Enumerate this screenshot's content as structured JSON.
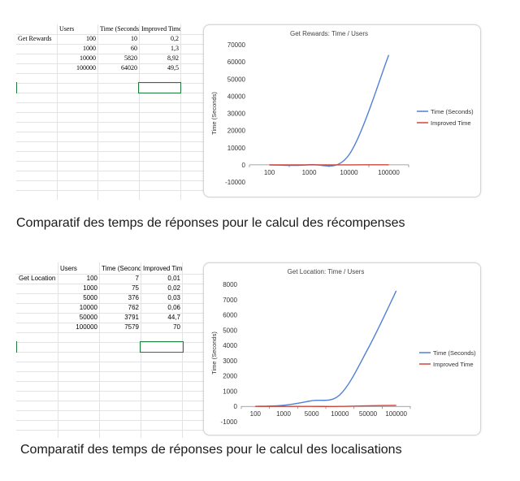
{
  "table1": {
    "headers": [
      "",
      "Users",
      "Time (Seconds)",
      "Improved Time"
    ],
    "row_label": "Get Rewards",
    "rows": [
      [
        "100",
        "10",
        "0,2"
      ],
      [
        "1000",
        "60",
        "1,3"
      ],
      [
        "10000",
        "5820",
        "8,92"
      ],
      [
        "100000",
        "64020",
        "49,5"
      ]
    ]
  },
  "table2": {
    "headers": [
      "",
      "Users",
      "Time (Seconds)",
      "Improved Time"
    ],
    "row_label": "Get Location",
    "rows": [
      [
        "100",
        "7",
        "0,01"
      ],
      [
        "1000",
        "75",
        "0,02"
      ],
      [
        "5000",
        "376",
        "0,03"
      ],
      [
        "10000",
        "762",
        "0,06"
      ],
      [
        "50000",
        "3791",
        "44,7"
      ],
      [
        "100000",
        "7579",
        "70"
      ]
    ]
  },
  "captions": {
    "first": "Comparatif des temps de réponses pour le calcul des récompenses",
    "second": "Comparatif des temps de réponses pour le calcul des localisations"
  },
  "colors": {
    "time_seconds": "#4f7fd8",
    "improved_time": "#d0453a",
    "selection": "#1e7d3a"
  },
  "chart_data": [
    {
      "type": "line",
      "title": "Get Rewards: Time / Users",
      "xlabel": "",
      "ylabel": "Time (Seconds)",
      "categories": [
        "100",
        "1000",
        "10000",
        "100000"
      ],
      "series": [
        {
          "name": "Time (Seconds)",
          "values": [
            10,
            60,
            5820,
            64020
          ]
        },
        {
          "name": "Improved Time",
          "values": [
            0.2,
            1.3,
            8.92,
            49.5
          ]
        }
      ],
      "ylim": [
        -10000,
        70000
      ],
      "yticks": [
        -10000,
        0,
        10000,
        20000,
        30000,
        40000,
        50000,
        60000,
        70000
      ],
      "legend": "right",
      "grid": false
    },
    {
      "type": "line",
      "title": "Get Location: Time / Users",
      "xlabel": "",
      "ylabel": "Time (Seconds)",
      "categories": [
        "100",
        "1000",
        "5000",
        "10000",
        "50000",
        "100000"
      ],
      "series": [
        {
          "name": "Time (Seconds)",
          "values": [
            7,
            75,
            376,
            762,
            3791,
            7579
          ]
        },
        {
          "name": "Improved Time",
          "values": [
            0.01,
            0.02,
            0.03,
            0.06,
            44.7,
            70
          ]
        }
      ],
      "ylim": [
        -1000,
        8000
      ],
      "yticks": [
        -1000,
        0,
        1000,
        2000,
        3000,
        4000,
        5000,
        6000,
        7000,
        8000
      ],
      "legend": "right",
      "grid": false
    }
  ]
}
